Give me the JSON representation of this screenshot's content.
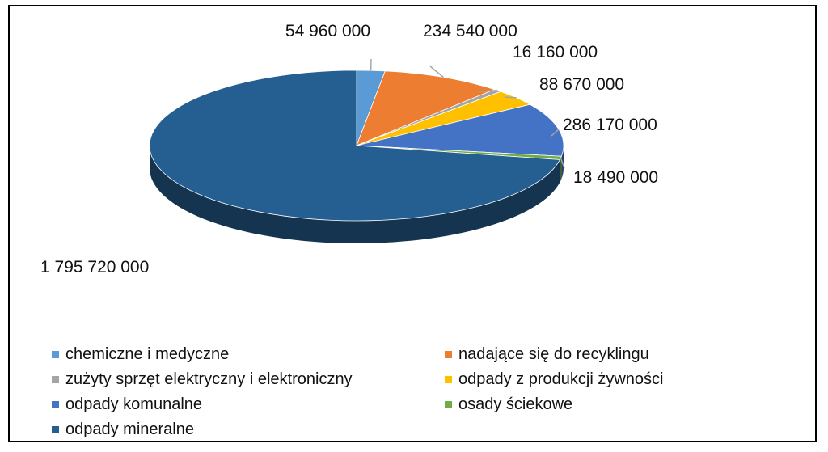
{
  "chart_data": {
    "type": "pie",
    "title": "",
    "slices": [
      {
        "label": "chemiczne i medyczne",
        "value": 54960000,
        "value_label": "54 960 000",
        "color": "#5b9bd5"
      },
      {
        "label": "nadające się do recyklingu",
        "value": 234540000,
        "value_label": "234 540 000",
        "color": "#ed7d31"
      },
      {
        "label": "zużyty sprzęt elektryczny i elektroniczny",
        "value": 16160000,
        "value_label": "16 160 000",
        "color": "#a5a5a5"
      },
      {
        "label": "odpady z produkcji żywności",
        "value": 88670000,
        "value_label": "88 670 000",
        "color": "#ffc000"
      },
      {
        "label": "odpady komunalne",
        "value": 286170000,
        "value_label": "286 170 000",
        "color": "#4472c4"
      },
      {
        "label": "osady ściekowe",
        "value": 18490000,
        "value_label": "18 490 000",
        "color": "#70ad47"
      },
      {
        "label": "odpady mineralne",
        "value": 1795720000,
        "value_label": "1 795 720 000",
        "color": "#255e91"
      }
    ],
    "legend_position": "bottom",
    "style": "3d"
  }
}
